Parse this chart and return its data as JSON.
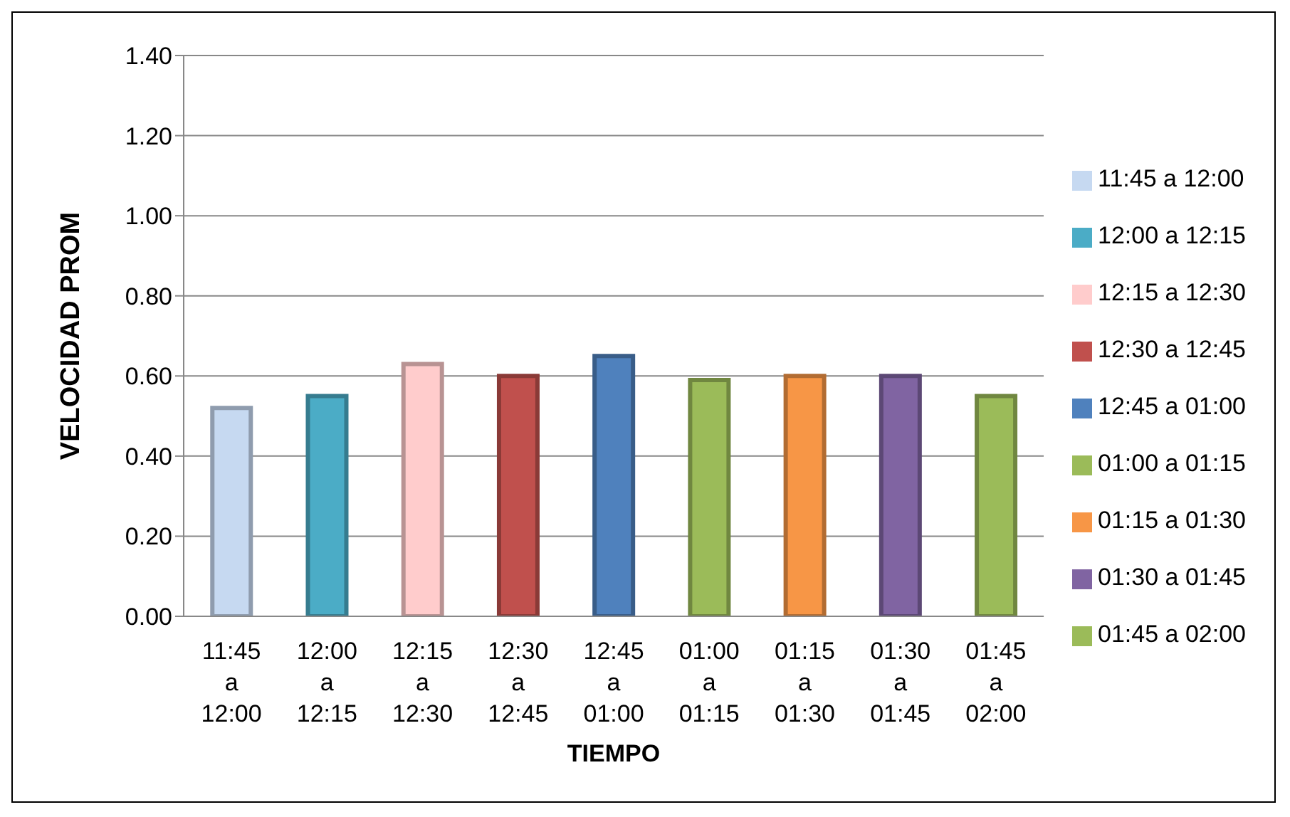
{
  "chart_data": {
    "type": "bar",
    "xlabel": "TIEMPO",
    "ylabel": "VELOCIDAD PROM",
    "stacked": true,
    "categories": [
      "11:45 a 12:00",
      "12:00 a 12:15",
      "12:15 a 12:30",
      "12:30 a 12:45",
      "12:45 a 01:00",
      "01:00 a 01:15",
      "01:15 a 01:30",
      "01:30 a 01:45",
      "01:45 a 02:00"
    ],
    "series": [
      {
        "name": "11:45 a 12:00",
        "color": "#c6d9f1",
        "values": [
          0.52,
          null,
          null,
          null,
          null,
          null,
          null,
          null,
          null
        ]
      },
      {
        "name": "12:00 a 12:15",
        "color": "#4bacc6",
        "values": [
          null,
          0.55,
          null,
          null,
          null,
          null,
          null,
          null,
          null
        ]
      },
      {
        "name": "12:15 a 12:30",
        "color": "#ffcccc",
        "values": [
          null,
          null,
          0.63,
          null,
          null,
          null,
          null,
          null,
          null
        ]
      },
      {
        "name": "12:30 a 12:45",
        "color": "#c0504d",
        "values": [
          null,
          null,
          null,
          0.6,
          null,
          null,
          null,
          null,
          null
        ]
      },
      {
        "name": "12:45 a 01:00",
        "color": "#4f81bd",
        "values": [
          null,
          null,
          null,
          null,
          0.65,
          null,
          null,
          null,
          null
        ]
      },
      {
        "name": "01:00 a 01:15",
        "color": "#9bbb59",
        "values": [
          null,
          null,
          null,
          null,
          null,
          0.59,
          null,
          null,
          null
        ]
      },
      {
        "name": "01:15 a 01:30",
        "color": "#f79646",
        "values": [
          null,
          null,
          null,
          null,
          null,
          null,
          0.6,
          null,
          null
        ]
      },
      {
        "name": "01:30 a 01:45",
        "color": "#8064a2",
        "values": [
          null,
          null,
          null,
          null,
          null,
          null,
          null,
          0.6,
          null
        ]
      },
      {
        "name": "01:45 a 02:00",
        "color": "#9bbb59",
        "values": [
          null,
          null,
          null,
          null,
          null,
          null,
          null,
          null,
          0.55
        ]
      }
    ],
    "ylim": [
      0,
      1.4
    ],
    "yticks": [
      {
        "value": 0,
        "label": "0.00"
      },
      {
        "value": 0.2,
        "label": "0.20"
      },
      {
        "value": 0.4,
        "label": "0.40"
      },
      {
        "value": 0.6,
        "label": "0.60"
      },
      {
        "value": 0.8,
        "label": "0.80"
      },
      {
        "value": 1,
        "label": "1.00"
      },
      {
        "value": 1.2,
        "label": "1.20"
      },
      {
        "value": 1.4,
        "label": "1.40"
      }
    ],
    "grid": "y",
    "legend": "right"
  }
}
